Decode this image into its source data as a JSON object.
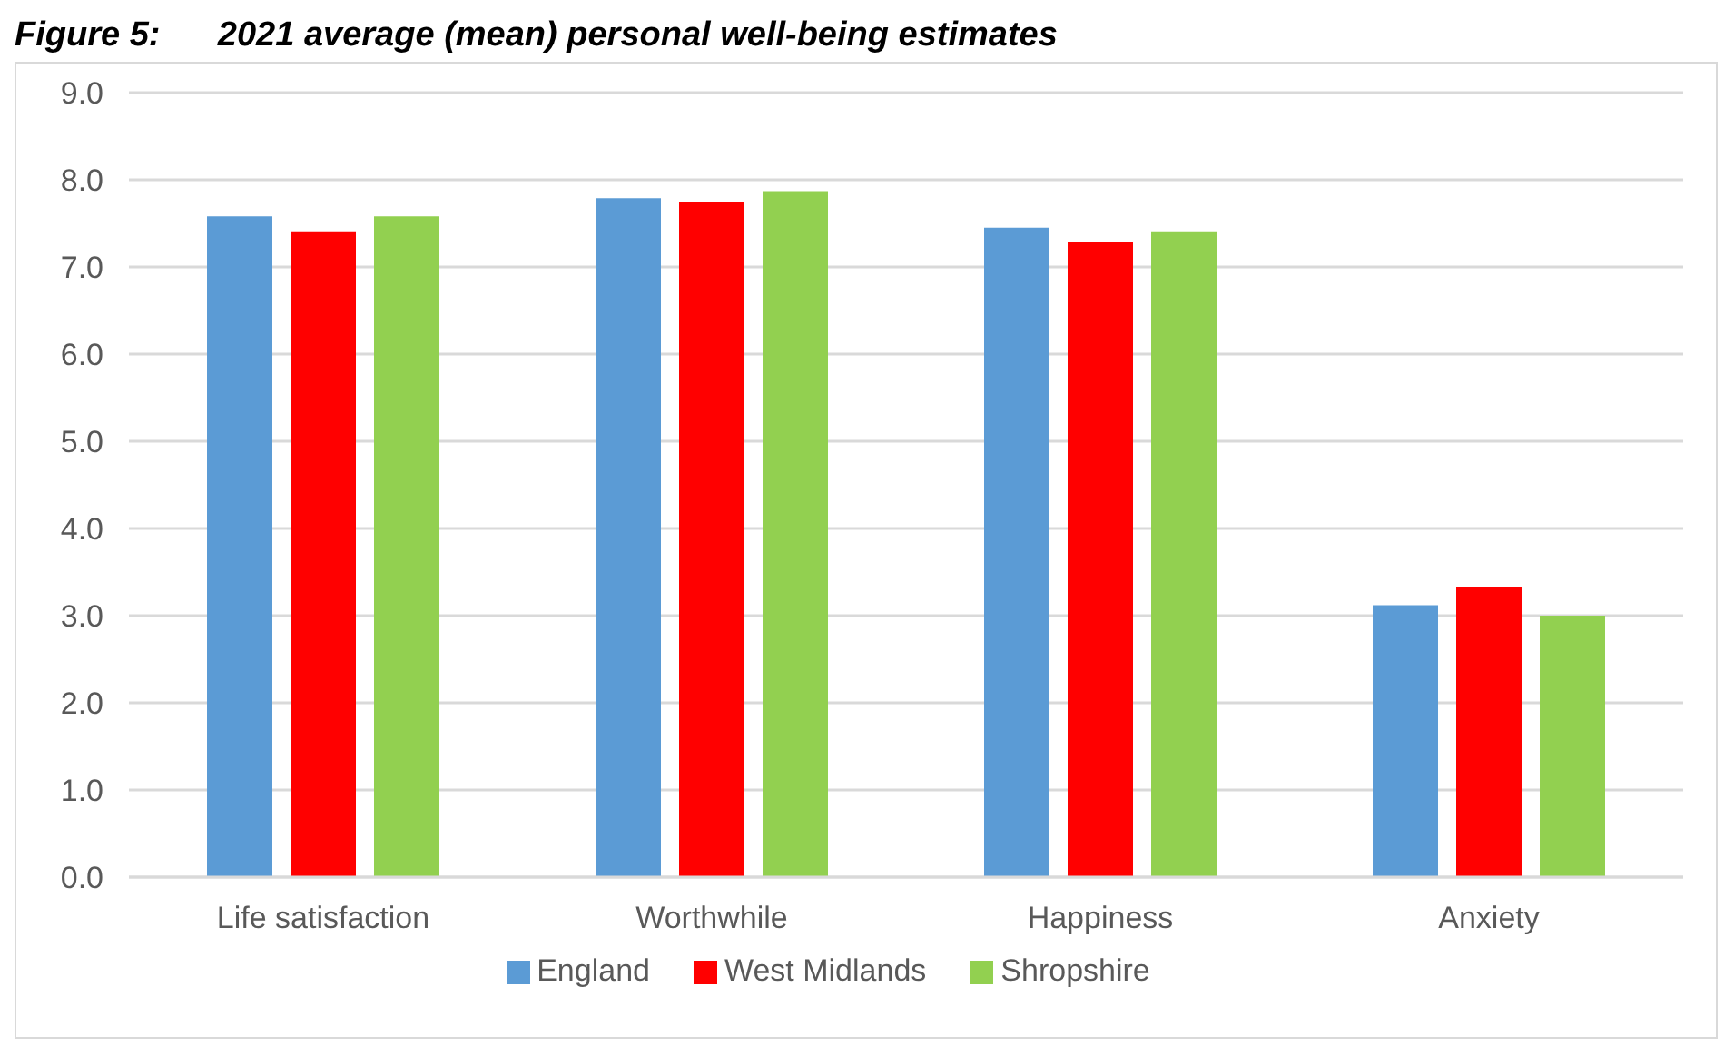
{
  "chart_data": {
    "type": "bar",
    "title": "Figure 5:      2021 average (mean) personal well-being estimates",
    "categories": [
      "Life satisfaction",
      "Worthwhile",
      "Happiness",
      "Anxiety"
    ],
    "series": [
      {
        "name": "England",
        "color": "#5b9bd5",
        "values": [
          7.58,
          7.79,
          7.45,
          3.12
        ]
      },
      {
        "name": "West Midlands",
        "color": "#ff0000",
        "values": [
          7.41,
          7.74,
          7.29,
          3.33
        ]
      },
      {
        "name": "Shropshire",
        "color": "#92d050",
        "values": [
          7.58,
          7.87,
          7.41,
          3.0
        ]
      }
    ],
    "ylim": [
      0,
      9
    ],
    "yticks": [
      {
        "value": 0,
        "label": "0.0"
      },
      {
        "value": 1,
        "label": "1.0"
      },
      {
        "value": 2,
        "label": "2.0"
      },
      {
        "value": 3,
        "label": "3.0"
      },
      {
        "value": 4,
        "label": "4.0"
      },
      {
        "value": 5,
        "label": "5.0"
      },
      {
        "value": 6,
        "label": "6.0"
      },
      {
        "value": 7,
        "label": "7.0"
      },
      {
        "value": 8,
        "label": "8.0"
      },
      {
        "value": 9,
        "label": "9.0"
      }
    ],
    "grid": "y",
    "legend": "bottom"
  }
}
